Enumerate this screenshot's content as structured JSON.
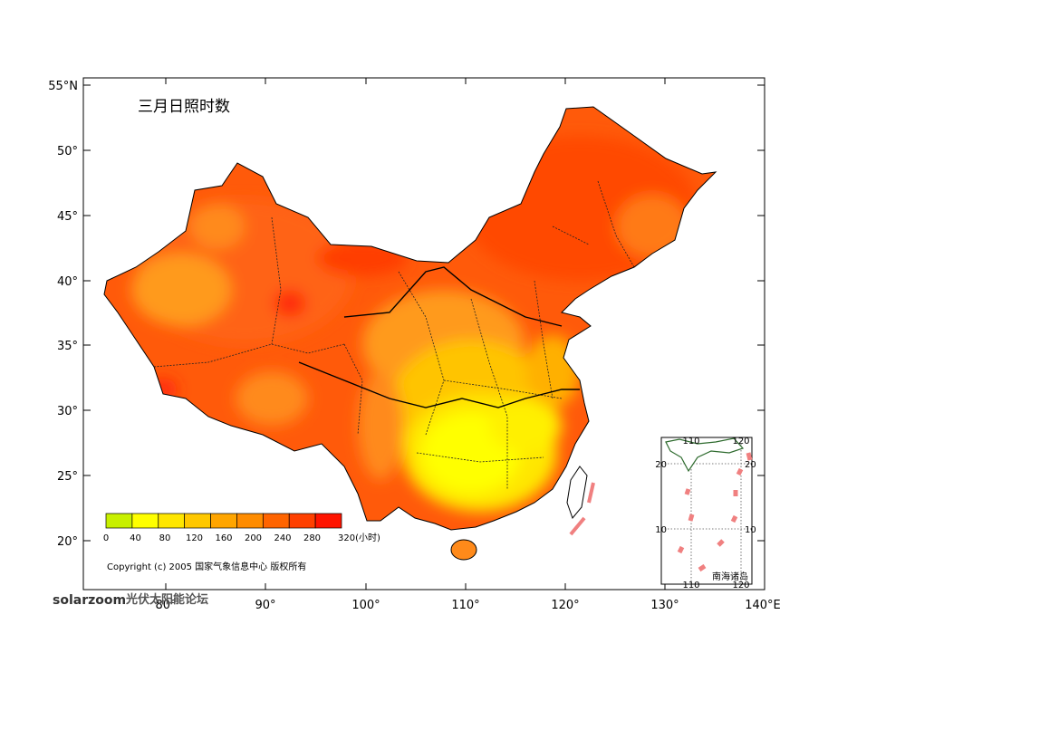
{
  "title": "三月日照时数",
  "map": {
    "lon_ticks": [
      "80°",
      "90°",
      "100°",
      "110°",
      "120°",
      "130°",
      "140°E"
    ],
    "lat_ticks": [
      "55°N",
      "50°",
      "45°",
      "40°",
      "35°",
      "30°",
      "25°",
      "20°"
    ]
  },
  "legend": {
    "labels": [
      "0",
      "40",
      "80",
      "120",
      "160",
      "200",
      "240",
      "280",
      "320(小时)"
    ],
    "colors": [
      "#c8f000",
      "#ffff00",
      "#ffe600",
      "#ffc800",
      "#ffa500",
      "#ff8c00",
      "#ff6400",
      "#ff4000",
      "#ff1400"
    ]
  },
  "copyright": "Copyright (c) 2005 国家气象信息中心 版权所有",
  "inset": {
    "label": "南海诸岛",
    "ticks_top": [
      "110",
      "120"
    ],
    "ticks_bottom": [
      "110",
      "120"
    ],
    "ticks_left": [
      "20",
      "10"
    ],
    "ticks_right": [
      "20",
      "10"
    ]
  },
  "watermark": {
    "brand": "solarzoom",
    "site": "光伏太阳能论坛"
  }
}
